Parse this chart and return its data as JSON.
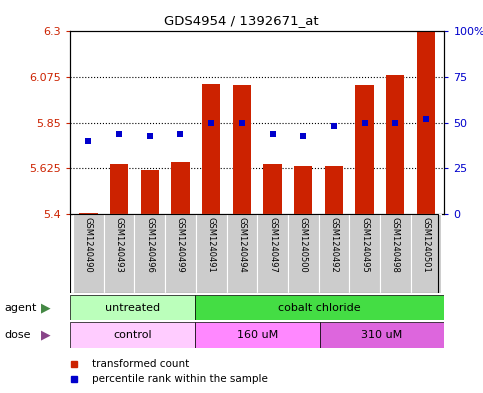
{
  "title": "GDS4954 / 1392671_at",
  "samples": [
    "GSM1240490",
    "GSM1240493",
    "GSM1240496",
    "GSM1240499",
    "GSM1240491",
    "GSM1240494",
    "GSM1240497",
    "GSM1240500",
    "GSM1240492",
    "GSM1240495",
    "GSM1240498",
    "GSM1240501"
  ],
  "bar_values": [
    5.405,
    5.645,
    5.62,
    5.655,
    6.04,
    6.035,
    5.645,
    5.635,
    5.635,
    6.035,
    6.085,
    6.3
  ],
  "blue_values": [
    40,
    44,
    43,
    44,
    50,
    50,
    44,
    43,
    48,
    50,
    50,
    52
  ],
  "ylim": [
    5.4,
    6.3
  ],
  "yticks": [
    5.4,
    5.625,
    5.85,
    6.075,
    6.3
  ],
  "ytick_labels": [
    "5.4",
    "5.625",
    "5.85",
    "6.075",
    "6.3"
  ],
  "y2lim": [
    0,
    100
  ],
  "y2ticks": [
    0,
    25,
    50,
    75,
    100
  ],
  "y2tick_labels": [
    "0",
    "25",
    "50",
    "75",
    "100%"
  ],
  "hlines": [
    5.625,
    5.85,
    6.075
  ],
  "bar_color": "#cc2200",
  "blue_color": "#0000cc",
  "agent_labels": [
    {
      "text": "untreated",
      "start": 0,
      "end": 4,
      "color": "#bbffbb"
    },
    {
      "text": "cobalt chloride",
      "start": 4,
      "end": 12,
      "color": "#44dd44"
    }
  ],
  "dose_colors": [
    "#ffccff",
    "#ff88ff",
    "#dd66dd"
  ],
  "dose_labels": [
    {
      "text": "control",
      "start": 0,
      "end": 4
    },
    {
      "text": "160 uM",
      "start": 4,
      "end": 8
    },
    {
      "text": "310 uM",
      "start": 8,
      "end": 12
    }
  ],
  "background_color": "#ffffff",
  "plot_bg": "#ffffff",
  "tick_label_color_left": "#cc2200",
  "tick_label_color_right": "#0000cc",
  "bar_width": 0.6,
  "label_bg": "#cccccc",
  "grid_color": "#000000",
  "agent_arrow_color": "#448844",
  "dose_arrow_color": "#884488"
}
